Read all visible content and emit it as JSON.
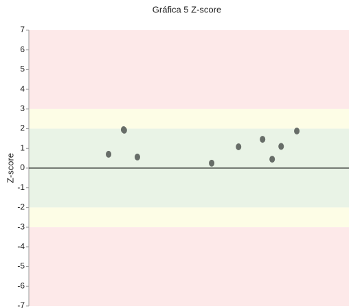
{
  "chart_data": {
    "type": "scatter",
    "title": "Gráfica 5 Z-score",
    "y_label": "Z-score",
    "x": [
      24.9,
      29.6,
      29.8,
      33.9,
      57.1,
      65.5,
      73.0,
      76.0,
      78.8,
      83.7
    ],
    "values": [
      0.7,
      1.95,
      1.92,
      0.56,
      0.25,
      1.08,
      1.46,
      0.45,
      1.1,
      1.88
    ],
    "color": "#676d68",
    "xlim": [
      0,
      100
    ],
    "ylim": [
      -7,
      7
    ],
    "yticks": [
      -7,
      -6,
      -5,
      -4,
      -3,
      -2,
      -1,
      0,
      1,
      2,
      3,
      4,
      5,
      6,
      7
    ],
    "bands": [
      {
        "from": 3,
        "to": 7,
        "color": "#fde9e9"
      },
      {
        "from": 2,
        "to": 3,
        "color": "#fdfde6"
      },
      {
        "from": -2,
        "to": 2,
        "color": "#e9f3e6"
      },
      {
        "from": -3,
        "to": -2,
        "color": "#fdfde6"
      },
      {
        "from": -7,
        "to": -3,
        "color": "#fde9e9"
      }
    ],
    "zero_line": 0
  }
}
